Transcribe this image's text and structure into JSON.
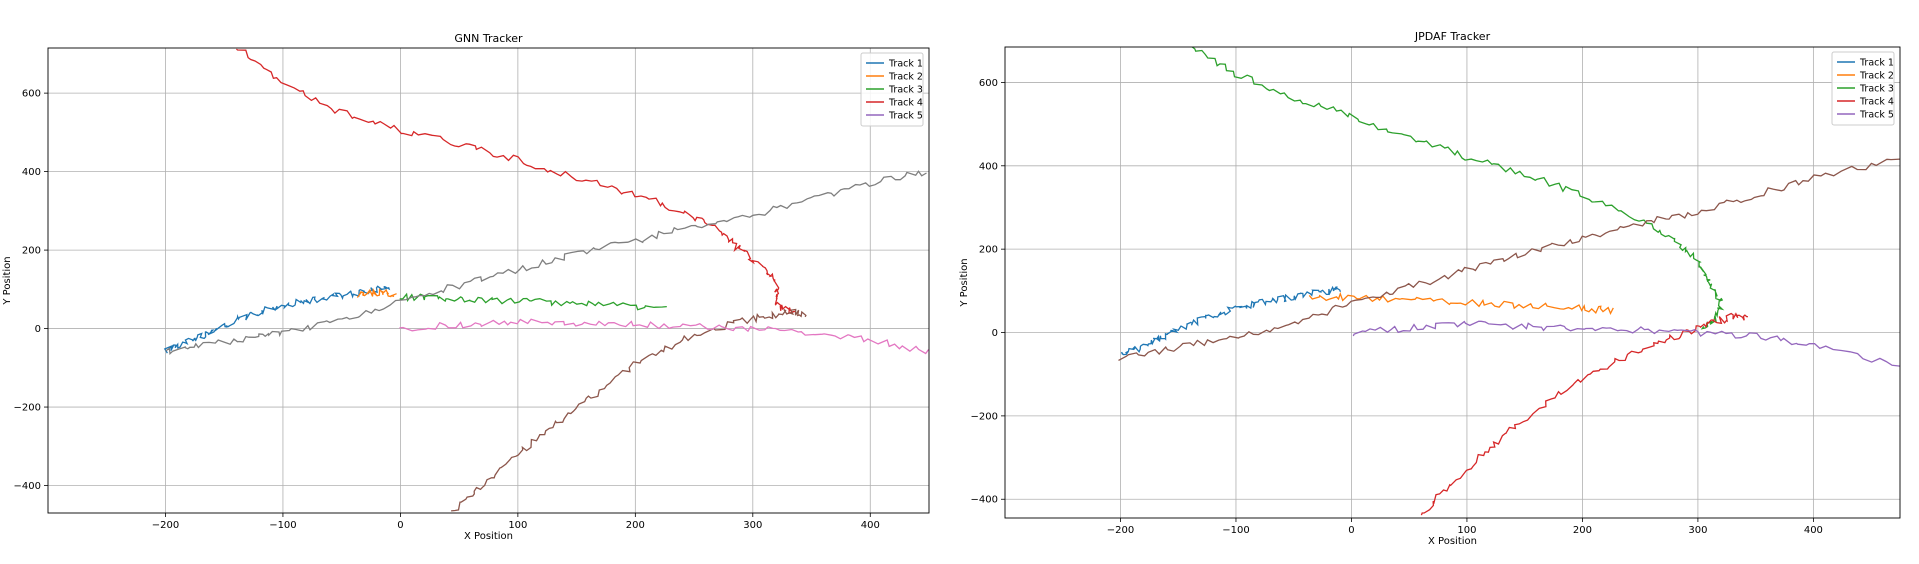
{
  "chart_data": [
    {
      "type": "line",
      "title": "GNN Tracker",
      "xlabel": "X Position",
      "ylabel": "Y Position",
      "xlim": [
        -300,
        450
      ],
      "ylim": [
        -470,
        715
      ],
      "xticks": [
        -200,
        -100,
        0,
        100,
        200,
        300,
        400
      ],
      "yticks": [
        -400,
        -200,
        0,
        200,
        400,
        600
      ],
      "xtick_labels": [
        "−200",
        "−100",
        "0",
        "100",
        "200",
        "300",
        "400"
      ],
      "ytick_labels": [
        "−400",
        "−200",
        "0",
        "200",
        "400",
        "600"
      ],
      "grid": true,
      "legend_position": "top-right",
      "series": [
        {
          "name": "Track 1",
          "color": "#1f77b4",
          "x": [
            -200,
            -185,
            -170,
            -160,
            -140,
            -120,
            -100,
            -80,
            -60,
            -40,
            -20,
            -10
          ],
          "y": [
            -55,
            -40,
            -20,
            -5,
            20,
            40,
            60,
            70,
            80,
            90,
            100,
            105
          ]
        },
        {
          "name": "Track 2",
          "color": "#ff7f0e",
          "x": [
            -35,
            -25,
            -15,
            -5
          ],
          "y": [
            85,
            90,
            92,
            85
          ]
        },
        {
          "name": "Track 3",
          "color": "#2ca02c",
          "x": [
            0,
            30,
            60,
            100,
            140,
            180,
            225
          ],
          "y": [
            80,
            78,
            75,
            70,
            65,
            58,
            50
          ]
        },
        {
          "name": "Track 4",
          "color": "#d62728",
          "x": [
            -140,
            -100,
            -50,
            0,
            50,
            100,
            150,
            200,
            240,
            270,
            290,
            310,
            320,
            320,
            335
          ],
          "y": [
            715,
            630,
            550,
            505,
            470,
            430,
            385,
            340,
            300,
            250,
            200,
            150,
            110,
            60,
            40
          ]
        },
        {
          "name": "Track 5",
          "color": "#9467bd",
          "x": [],
          "y": []
        },
        {
          "name": "",
          "color": "#8c564b",
          "x": [
            45,
            70,
            100,
            130,
            160,
            200,
            240,
            280,
            310,
            330,
            345
          ],
          "y": [
            -465,
            -400,
            -320,
            -250,
            -180,
            -90,
            -30,
            10,
            30,
            45,
            35
          ]
        },
        {
          "name": "",
          "color": "#e377c2",
          "x": [
            0,
            50,
            100,
            150,
            200,
            250,
            300,
            350,
            400,
            450
          ],
          "y": [
            0,
            10,
            20,
            15,
            10,
            5,
            0,
            -10,
            -30,
            -60
          ]
        },
        {
          "name": "",
          "color": "#7f7f7f",
          "x": [
            -200,
            -170,
            -130,
            -100,
            -50,
            0,
            50,
            100,
            150,
            200,
            250,
            300,
            350,
            400,
            450
          ],
          "y": [
            -60,
            -45,
            -25,
            -10,
            20,
            70,
            110,
            150,
            190,
            225,
            260,
            290,
            330,
            370,
            400
          ]
        }
      ]
    },
    {
      "type": "line",
      "title": "JPDAF Tracker",
      "xlabel": "X Position",
      "ylabel": "Y Position",
      "xlim": [
        -300,
        475
      ],
      "ylim": [
        -445,
        685
      ],
      "xticks": [
        -200,
        -100,
        0,
        100,
        200,
        300,
        400
      ],
      "yticks": [
        -400,
        -200,
        0,
        200,
        400,
        600
      ],
      "xtick_labels": [
        "−200",
        "−100",
        "0",
        "100",
        "200",
        "300",
        "400"
      ],
      "ytick_labels": [
        "−400",
        "−200",
        "0",
        "200",
        "400",
        "600"
      ],
      "grid": true,
      "legend_position": "top-right",
      "series": [
        {
          "name": "Track 1",
          "color": "#1f77b4",
          "x": [
            -200,
            -185,
            -170,
            -160,
            -140,
            -120,
            -100,
            -80,
            -60,
            -40,
            -20,
            -10
          ],
          "y": [
            -55,
            -40,
            -20,
            -5,
            20,
            40,
            60,
            70,
            80,
            90,
            100,
            105
          ]
        },
        {
          "name": "Track 2",
          "color": "#ff7f0e",
          "x": [
            -35,
            0,
            50,
            100,
            150,
            200,
            225
          ],
          "y": [
            85,
            85,
            78,
            72,
            65,
            58,
            52
          ]
        },
        {
          "name": "Track 3",
          "color": "#2ca02c",
          "x": [
            -140,
            -100,
            -50,
            0,
            50,
            100,
            150,
            200,
            250,
            280,
            300,
            310,
            320,
            315,
            305
          ],
          "y": [
            685,
            620,
            560,
            520,
            470,
            420,
            380,
            330,
            270,
            220,
            170,
            120,
            70,
            30,
            10
          ]
        },
        {
          "name": "Track 4",
          "color": "#d62728",
          "x": [
            60,
            80,
            110,
            140,
            180,
            220,
            260,
            290,
            310,
            330,
            345
          ],
          "y": [
            -445,
            -380,
            -300,
            -230,
            -150,
            -80,
            -30,
            0,
            20,
            40,
            35
          ]
        },
        {
          "name": "Track 5",
          "color": "#9467bd",
          "x": [
            0,
            50,
            100,
            150,
            200,
            250,
            300,
            350,
            400,
            475
          ],
          "y": [
            0,
            10,
            20,
            15,
            10,
            5,
            0,
            -10,
            -30,
            -80
          ]
        },
        {
          "name": "",
          "color": "#8c564b",
          "x": [
            -200,
            -150,
            -100,
            -50,
            0,
            50,
            100,
            150,
            200,
            250,
            300,
            350,
            400,
            475
          ],
          "y": [
            -60,
            -35,
            -10,
            20,
            70,
            110,
            150,
            190,
            225,
            260,
            290,
            330,
            370,
            420
          ]
        }
      ]
    }
  ]
}
